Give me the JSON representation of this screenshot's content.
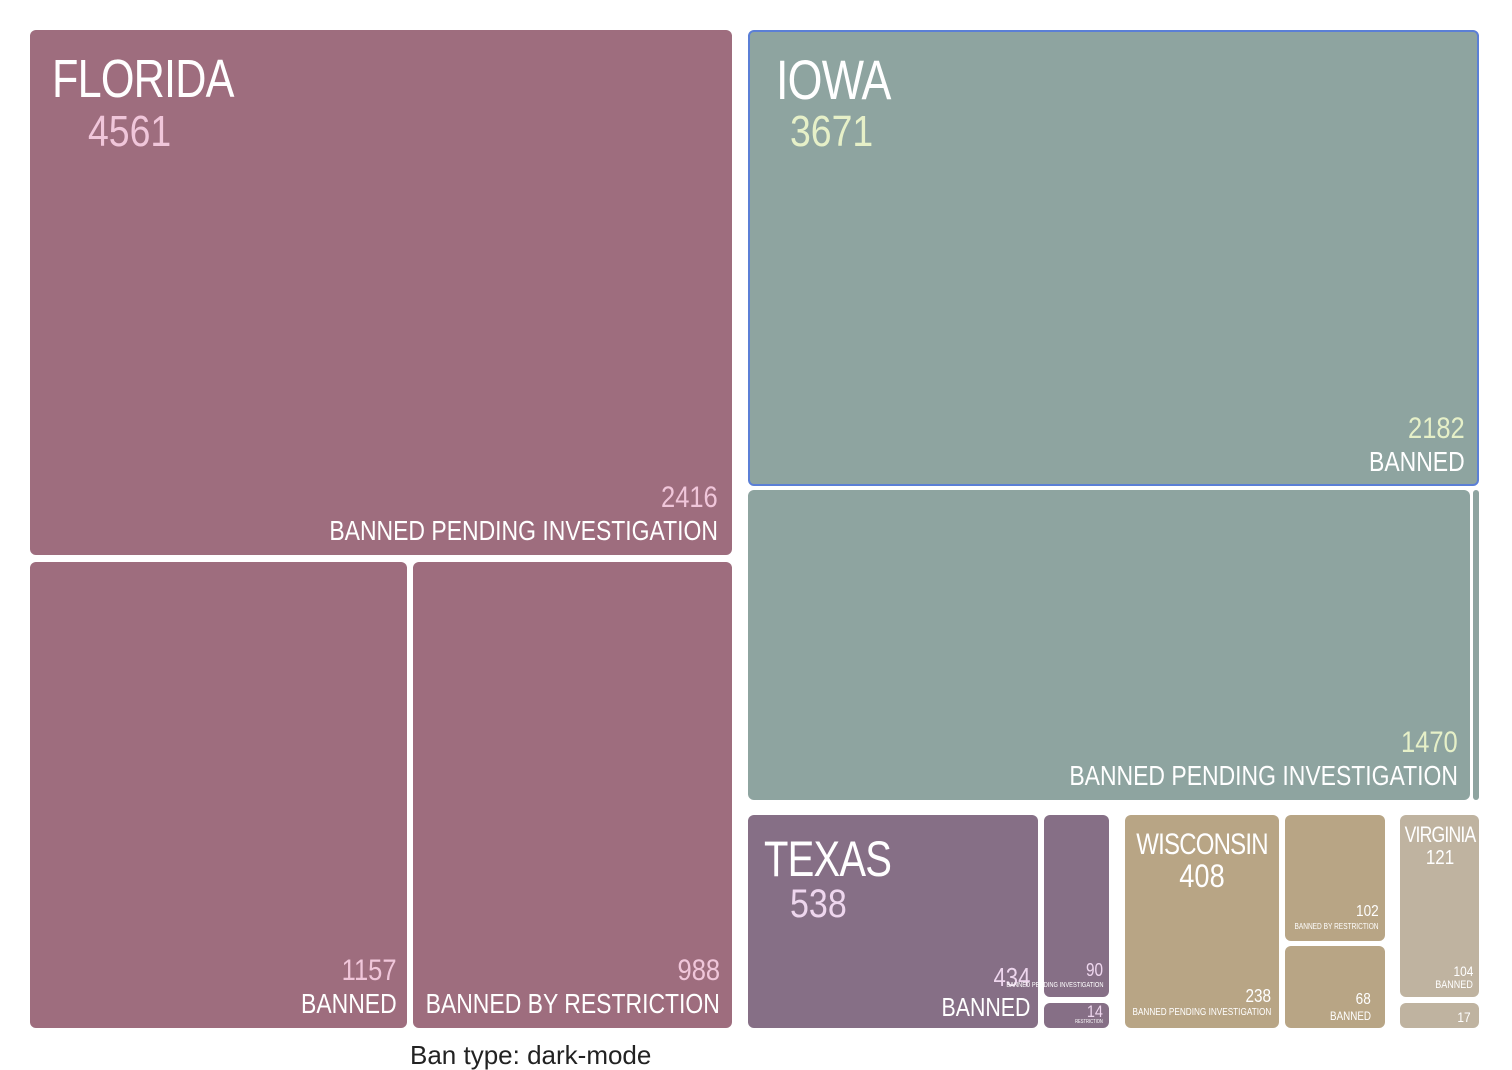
{
  "chart_data": {
    "type": "treemap",
    "groups": [
      {
        "name": "FLORIDA",
        "total": 4561,
        "color": "#9e6d7e",
        "value_color": "#f0c6da",
        "children": [
          {
            "category": "BANNED PENDING INVESTIGATION",
            "value": 2416
          },
          {
            "category": "BANNED",
            "value": 1157
          },
          {
            "category": "BANNED BY RESTRICTION",
            "value": 988
          }
        ]
      },
      {
        "name": "IOWA",
        "total": 3671,
        "color": "#8ea4a0",
        "value_color": "#e6f0c8",
        "children": [
          {
            "category": "BANNED",
            "value": 2182
          },
          {
            "category": "BANNED PENDING INVESTIGATION",
            "value": 1470
          },
          {
            "category": "",
            "value": null
          }
        ]
      },
      {
        "name": "TEXAS",
        "total": 538,
        "color": "#866f86",
        "value_color": "#eed6ee",
        "children": [
          {
            "category": "BANNED",
            "value": 434
          },
          {
            "category": "BANNED PENDING INVESTIGATION",
            "value": 90
          },
          {
            "category": "RESTRICTION",
            "value": 14
          }
        ]
      },
      {
        "name": "WISCONSIN",
        "total": 408,
        "color": "#b8a585",
        "value_color": "#ffffff",
        "children": [
          {
            "category": "BANNED PENDING INVESTIGATION",
            "value": 238
          },
          {
            "category": "BANNED BY RESTRICTION",
            "value": 102
          },
          {
            "category": "BANNED",
            "value": 68
          }
        ]
      },
      {
        "name": "VIRGINIA",
        "total": 121,
        "color": "#bfb3a0",
        "value_color": "#ffffff",
        "children": [
          {
            "category": "BANNED",
            "value": 104
          },
          {
            "category": "",
            "value": 17
          }
        ]
      }
    ]
  },
  "footer": {
    "caption": "Ban type: dark-mode"
  }
}
